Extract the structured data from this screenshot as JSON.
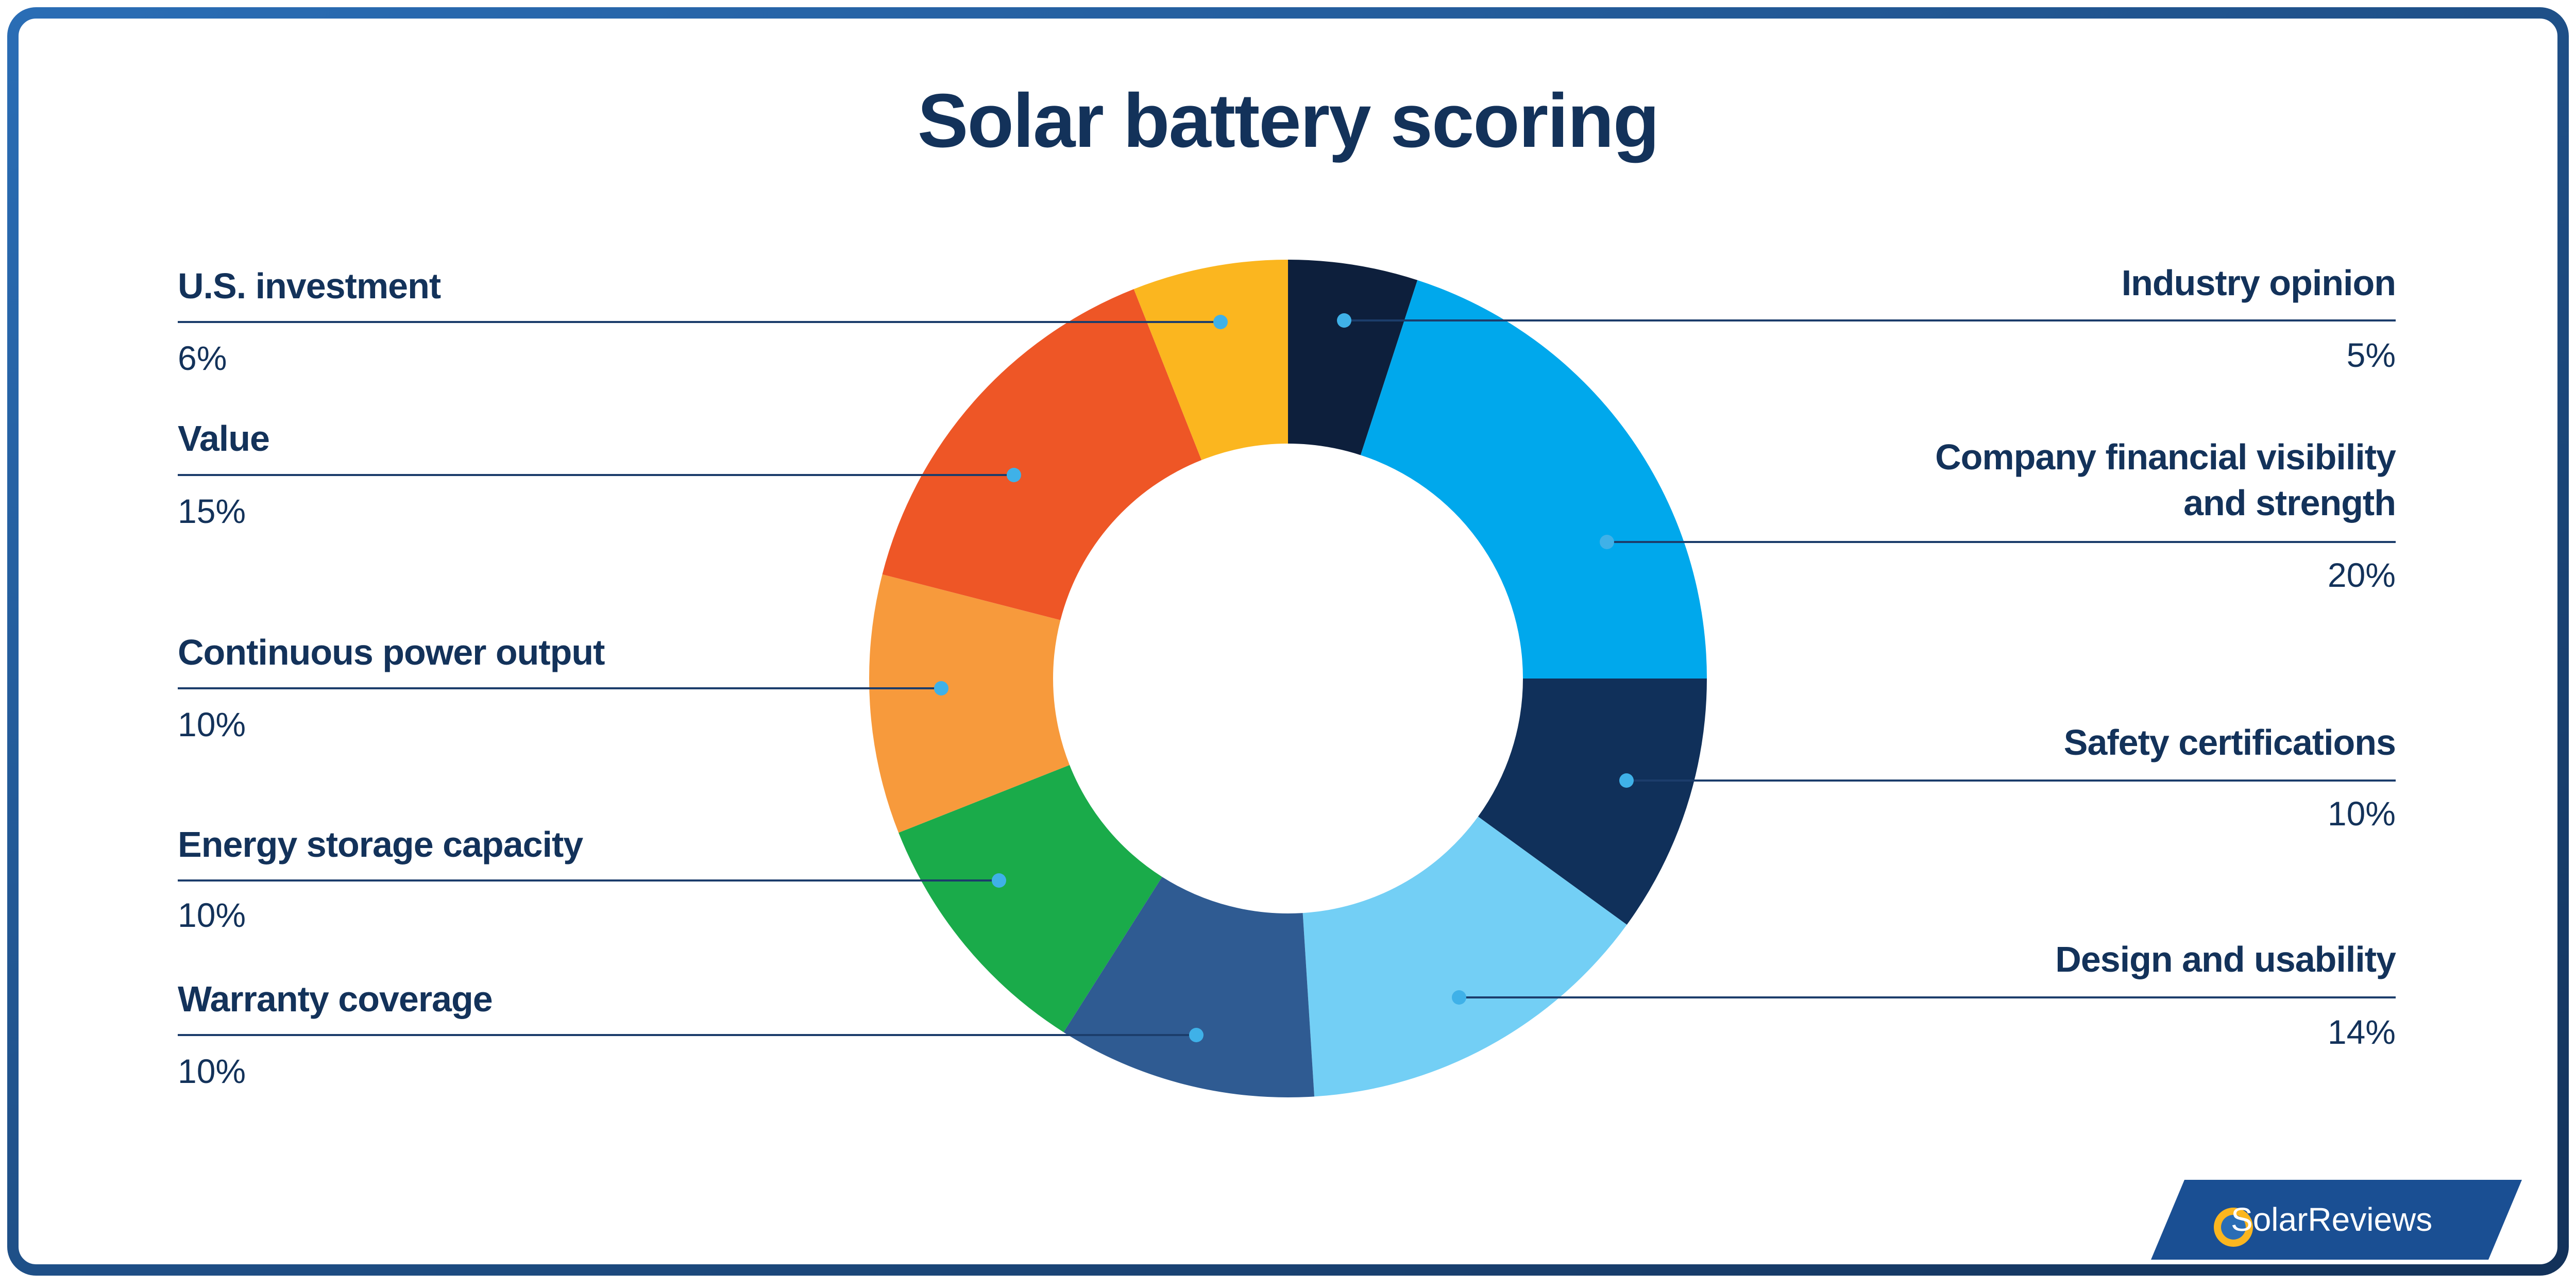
{
  "chart_data": {
    "type": "donut",
    "title": "Solar battery scoring",
    "categories": [
      "Industry opinion",
      "Company financial visibility and strength",
      "Safety certifications",
      "Design and usability",
      "Warranty coverage",
      "Energy storage capacity",
      "Continuous power output",
      "Value",
      "U.S. investment"
    ],
    "values": [
      5,
      20,
      10,
      14,
      10,
      10,
      10,
      15,
      6
    ],
    "value_labels": [
      "5%",
      "20%",
      "10%",
      "14%",
      "10%",
      "10%",
      "10%",
      "15%",
      "6%"
    ],
    "colors": [
      "#0d1f3c",
      "#00a8ec",
      "#10305a",
      "#73cff5",
      "#2f5b92",
      "#1aab4a",
      "#f79a3c",
      "#ee5626",
      "#fbb61f"
    ]
  },
  "logo": {
    "text": "SolarReviews"
  }
}
